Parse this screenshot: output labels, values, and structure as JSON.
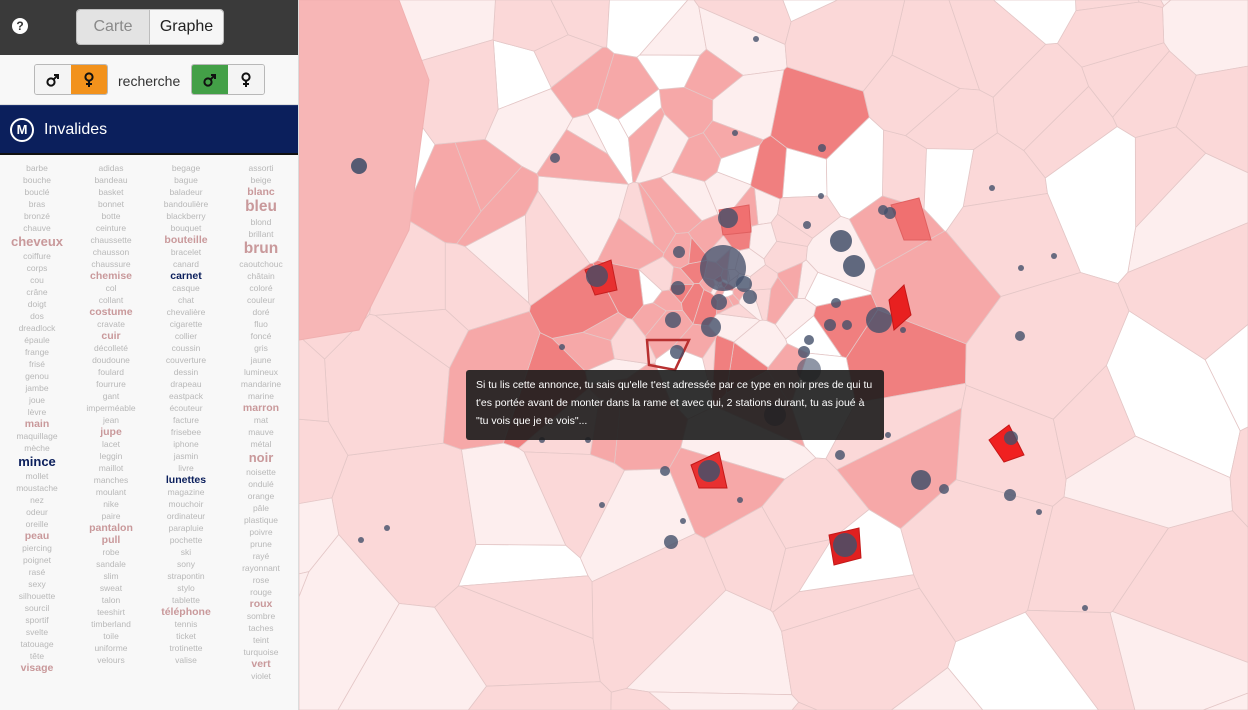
{
  "toolbar": {
    "help_icon": "question-circle-icon",
    "view_toggle": {
      "carte": "Carte",
      "graphe": "Graphe",
      "active": "Graphe"
    }
  },
  "gender_filter": {
    "own": {
      "male": "♂",
      "female": "♀",
      "active": "female"
    },
    "search_label": "recherche",
    "search": {
      "male": "♂",
      "female": "♀",
      "active": "male"
    },
    "colors": {
      "female_active": "#f2921c",
      "male_active": "#43a047"
    }
  },
  "station": {
    "logo": "M",
    "name": "Invalides",
    "color": "#0b1f5c"
  },
  "word_cloud": {
    "columns": [
      [
        [
          "barbe",
          "n"
        ],
        [
          "bouche",
          "n"
        ],
        [
          "bouclé",
          "n"
        ],
        [
          "bras",
          "n"
        ],
        [
          "bronzé",
          "n"
        ],
        [
          "chauve",
          "n"
        ],
        [
          "cheveux",
          "l"
        ],
        [
          "coiffure",
          "n"
        ],
        [
          "corps",
          "n"
        ],
        [
          "cou",
          "n"
        ],
        [
          "crâne",
          "n"
        ],
        [
          "doigt",
          "n"
        ],
        [
          "dos",
          "n"
        ],
        [
          "dreadlock",
          "n"
        ],
        [
          "épaule",
          "n"
        ],
        [
          "frange",
          "n"
        ],
        [
          "frisé",
          "n"
        ],
        [
          "genou",
          "n"
        ],
        [
          "jambe",
          "n"
        ],
        [
          "joue",
          "n"
        ],
        [
          "lèvre",
          "n"
        ],
        [
          "main",
          "m"
        ],
        [
          "maquillage",
          "n"
        ],
        [
          "mèche",
          "n"
        ],
        [
          "mince",
          "ld"
        ],
        [
          "mollet",
          "n"
        ],
        [
          "moustache",
          "n"
        ],
        [
          "nez",
          "n"
        ],
        [
          "odeur",
          "n"
        ],
        [
          "oreille",
          "n"
        ],
        [
          "peau",
          "m"
        ],
        [
          "piercing",
          "n"
        ],
        [
          "poignet",
          "n"
        ],
        [
          "rasé",
          "n"
        ],
        [
          "sexy",
          "n"
        ],
        [
          "silhouette",
          "n"
        ],
        [
          "sourcil",
          "n"
        ],
        [
          "sportif",
          "n"
        ],
        [
          "svelte",
          "n"
        ],
        [
          "tatouage",
          "n"
        ],
        [
          "tête",
          "n"
        ],
        [
          "visage",
          "m"
        ]
      ],
      [
        [
          "adidas",
          "n"
        ],
        [
          "bandeau",
          "n"
        ],
        [
          "basket",
          "n"
        ],
        [
          "bonnet",
          "n"
        ],
        [
          "botte",
          "n"
        ],
        [
          "ceinture",
          "n"
        ],
        [
          "chaussette",
          "n"
        ],
        [
          "chausson",
          "n"
        ],
        [
          "chaussure",
          "n"
        ],
        [
          "chemise",
          "m"
        ],
        [
          "col",
          "n"
        ],
        [
          "collant",
          "n"
        ],
        [
          "costume",
          "m"
        ],
        [
          "cravate",
          "n"
        ],
        [
          "cuir",
          "m"
        ],
        [
          "décolleté",
          "n"
        ],
        [
          "doudoune",
          "n"
        ],
        [
          "foulard",
          "n"
        ],
        [
          "fourrure",
          "n"
        ],
        [
          "gant",
          "n"
        ],
        [
          "imperméable",
          "n"
        ],
        [
          "jean",
          "n"
        ],
        [
          "jupe",
          "m"
        ],
        [
          "lacet",
          "n"
        ],
        [
          "leggin",
          "n"
        ],
        [
          "maillot",
          "n"
        ],
        [
          "manches",
          "n"
        ],
        [
          "moulant",
          "n"
        ],
        [
          "nike",
          "n"
        ],
        [
          "paire",
          "n"
        ],
        [
          "pantalon",
          "m"
        ],
        [
          "pull",
          "m"
        ],
        [
          "robe",
          "n"
        ],
        [
          "sandale",
          "n"
        ],
        [
          "slim",
          "n"
        ],
        [
          "sweat",
          "n"
        ],
        [
          "talon",
          "n"
        ],
        [
          "teeshirt",
          "n"
        ],
        [
          "timberland",
          "n"
        ],
        [
          "toile",
          "n"
        ],
        [
          "uniforme",
          "n"
        ],
        [
          "velours",
          "n"
        ]
      ],
      [
        [
          "begage",
          "n"
        ],
        [
          "bague",
          "n"
        ],
        [
          "baladeur",
          "n"
        ],
        [
          "bandoulière",
          "n"
        ],
        [
          "blackberry",
          "n"
        ],
        [
          "bouquet",
          "n"
        ],
        [
          "bouteille",
          "m"
        ],
        [
          "bracelet",
          "n"
        ],
        [
          "canard",
          "n"
        ],
        [
          "carnet",
          "md"
        ],
        [
          "casque",
          "n"
        ],
        [
          "chat",
          "n"
        ],
        [
          "chevalière",
          "n"
        ],
        [
          "cigarette",
          "n"
        ],
        [
          "collier",
          "n"
        ],
        [
          "coussin",
          "n"
        ],
        [
          "couverture",
          "n"
        ],
        [
          "dessin",
          "n"
        ],
        [
          "drapeau",
          "n"
        ],
        [
          "eastpack",
          "n"
        ],
        [
          "écouteur",
          "n"
        ],
        [
          "facture",
          "n"
        ],
        [
          "frisebee",
          "n"
        ],
        [
          "iphone",
          "n"
        ],
        [
          "jasmin",
          "n"
        ],
        [
          "livre",
          "n"
        ],
        [
          "lunettes",
          "md"
        ],
        [
          "magazine",
          "n"
        ],
        [
          "mouchoir",
          "n"
        ],
        [
          "ordinateur",
          "n"
        ],
        [
          "parapluie",
          "n"
        ],
        [
          "pochette",
          "n"
        ],
        [
          "ski",
          "n"
        ],
        [
          "sony",
          "n"
        ],
        [
          "strapontin",
          "n"
        ],
        [
          "stylo",
          "n"
        ],
        [
          "tablette",
          "n"
        ],
        [
          "téléphone",
          "m"
        ],
        [
          "tennis",
          "n"
        ],
        [
          "ticket",
          "n"
        ],
        [
          "trotinette",
          "n"
        ],
        [
          "valise",
          "n"
        ]
      ],
      [
        [
          "assorti",
          "n"
        ],
        [
          "beige",
          "n"
        ],
        [
          "blanc",
          "m"
        ],
        [
          "bleu",
          "xl"
        ],
        [
          "blond",
          "n"
        ],
        [
          "brillant",
          "n"
        ],
        [
          "brun",
          "xl"
        ],
        [
          "caoutchouc",
          "n"
        ],
        [
          "châtain",
          "n"
        ],
        [
          "coloré",
          "n"
        ],
        [
          "couleur",
          "n"
        ],
        [
          "doré",
          "n"
        ],
        [
          "fluo",
          "n"
        ],
        [
          "foncé",
          "n"
        ],
        [
          "gris",
          "n"
        ],
        [
          "jaune",
          "n"
        ],
        [
          "lumineux",
          "n"
        ],
        [
          "mandarine",
          "n"
        ],
        [
          "marine",
          "n"
        ],
        [
          "marron",
          "m"
        ],
        [
          "mat",
          "n"
        ],
        [
          "mauve",
          "n"
        ],
        [
          "métal",
          "n"
        ],
        [
          "noir",
          "l"
        ],
        [
          "noisette",
          "n"
        ],
        [
          "ondulé",
          "n"
        ],
        [
          "orange",
          "n"
        ],
        [
          "pâle",
          "n"
        ],
        [
          "plastique",
          "n"
        ],
        [
          "poivre",
          "n"
        ],
        [
          "prune",
          "n"
        ],
        [
          "rayé",
          "n"
        ],
        [
          "rayonnant",
          "n"
        ],
        [
          "rose",
          "n"
        ],
        [
          "rouge",
          "n"
        ],
        [
          "roux",
          "m"
        ],
        [
          "sombre",
          "n"
        ],
        [
          "taches",
          "n"
        ],
        [
          "teint",
          "n"
        ],
        [
          "turquoise",
          "n"
        ],
        [
          "vert",
          "m"
        ],
        [
          "violet",
          "n"
        ]
      ]
    ]
  },
  "map": {
    "tooltip": "Si tu lis cette annonce, tu sais qu'elle t'est adressée par ce type en noir pres de qui tu t'es portée avant de monter dans la rame et avec qui, 2 stations durant, tu as joué à \"tu vois que je te vois\"...",
    "highlight_color": "#f00000",
    "node_color": "#44506a"
  }
}
